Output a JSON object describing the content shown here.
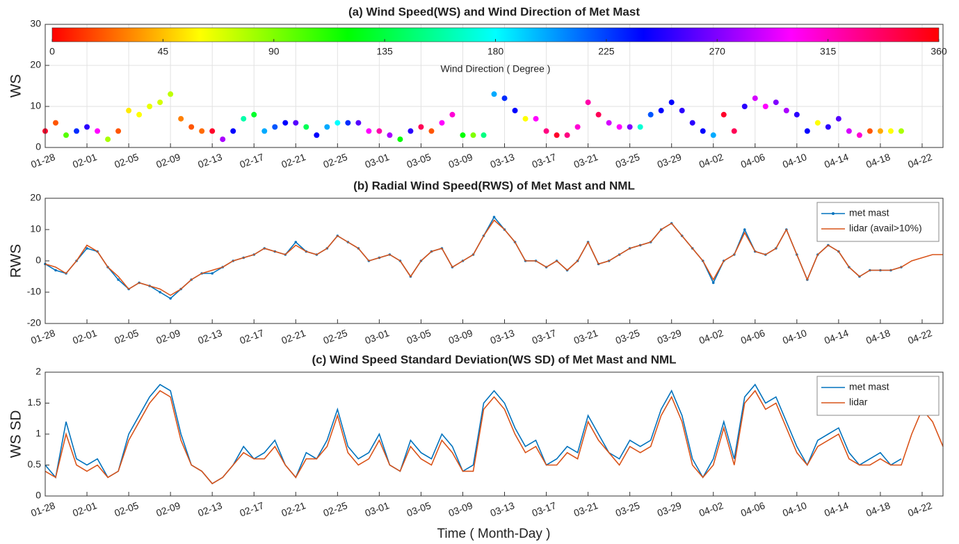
{
  "chart_data": [
    {
      "type": "scatter",
      "title": "(a) Wind Speed(WS) and Wind Direction of Met Mast",
      "ylabel": "WS",
      "x": [
        "01-28",
        "01-29",
        "01-30",
        "01-31",
        "02-01",
        "02-02",
        "02-03",
        "02-04",
        "02-05",
        "02-06",
        "02-07",
        "02-08",
        "02-09",
        "02-10",
        "02-11",
        "02-12",
        "02-13",
        "02-14",
        "02-15",
        "02-16",
        "02-17",
        "02-18",
        "02-19",
        "02-20",
        "02-21",
        "02-22",
        "02-23",
        "02-24",
        "02-25",
        "02-26",
        "02-27",
        "02-28",
        "03-01",
        "03-02",
        "03-03",
        "03-04",
        "03-05",
        "03-06",
        "03-07",
        "03-08",
        "03-09",
        "03-10",
        "03-11",
        "03-12",
        "03-13",
        "03-14",
        "03-15",
        "03-16",
        "03-17",
        "03-18",
        "03-19",
        "03-20",
        "03-21",
        "03-22",
        "03-23",
        "03-24",
        "03-25",
        "03-26",
        "03-27",
        "03-28",
        "03-29",
        "03-30",
        "03-31",
        "04-01",
        "04-02",
        "04-03",
        "04-04",
        "04-05",
        "04-06",
        "04-07",
        "04-08",
        "04-09",
        "04-10",
        "04-11",
        "04-12",
        "04-13",
        "04-14",
        "04-15",
        "04-16",
        "04-17",
        "04-18",
        "04-19",
        "04-20",
        "04-21",
        "04-22",
        "04-23",
        "04-24"
      ],
      "values": [
        4,
        6,
        3,
        4,
        5,
        4,
        2,
        4,
        9,
        8,
        10,
        11,
        13,
        7,
        5,
        4,
        4,
        2,
        4,
        7,
        8,
        4,
        5,
        6,
        6,
        5,
        3,
        5,
        6,
        6,
        6,
        4,
        4,
        3,
        2,
        4,
        5,
        4,
        6,
        8,
        3,
        3,
        3,
        13,
        12,
        9,
        7,
        7,
        4,
        3,
        3,
        5,
        11,
        8,
        6,
        5,
        5,
        5,
        8,
        9,
        11,
        9,
        6,
        4,
        3,
        8,
        4,
        10,
        12,
        10,
        11,
        9,
        8,
        4,
        6,
        5,
        7,
        4,
        3,
        4,
        4,
        4,
        4,
        null,
        null,
        null,
        null
      ],
      "color_values": [
        350,
        20,
        100,
        230,
        250,
        300,
        80,
        20,
        55,
        60,
        65,
        70,
        75,
        30,
        20,
        25,
        350,
        280,
        240,
        160,
        130,
        200,
        220,
        240,
        260,
        140,
        240,
        200,
        180,
        230,
        260,
        300,
        320,
        280,
        120,
        250,
        340,
        20,
        300,
        310,
        120,
        90,
        150,
        200,
        230,
        240,
        60,
        300,
        330,
        350,
        330,
        310,
        320,
        340,
        290,
        300,
        270,
        170,
        220,
        240,
        240,
        250,
        250,
        240,
        200,
        350,
        340,
        250,
        290,
        300,
        270,
        280,
        250,
        240,
        60,
        250,
        260,
        290,
        310,
        20,
        40,
        60,
        80,
        null,
        null,
        null,
        null
      ],
      "colormap": "hsv",
      "colorbar": {
        "label": "Wind Direction ( Degree )",
        "label_color": "#e8202a",
        "lim": [
          0,
          360
        ],
        "ticks": [
          0,
          45,
          90,
          135,
          180,
          225,
          270,
          315,
          360
        ]
      },
      "xlim": [
        "01-28",
        "04-24"
      ],
      "xticks": [
        "01-28",
        "02-01",
        "02-05",
        "02-09",
        "02-13",
        "02-17",
        "02-21",
        "02-25",
        "03-01",
        "03-05",
        "03-09",
        "03-13",
        "03-17",
        "03-21",
        "03-25",
        "03-29",
        "04-02",
        "04-06",
        "04-10",
        "04-14",
        "04-18",
        "04-22"
      ],
      "ylim": [
        0,
        30
      ],
      "yticks": [
        0,
        10,
        20,
        30
      ],
      "grid": true
    },
    {
      "type": "line",
      "title": "(b) Radial Wind Speed(RWS) of Met Mast and NML",
      "ylabel": "RWS",
      "x": [
        "01-28",
        "01-29",
        "01-30",
        "01-31",
        "02-01",
        "02-02",
        "02-03",
        "02-04",
        "02-05",
        "02-06",
        "02-07",
        "02-08",
        "02-09",
        "02-10",
        "02-11",
        "02-12",
        "02-13",
        "02-14",
        "02-15",
        "02-16",
        "02-17",
        "02-18",
        "02-19",
        "02-20",
        "02-21",
        "02-22",
        "02-23",
        "02-24",
        "02-25",
        "02-26",
        "02-27",
        "02-28",
        "03-01",
        "03-02",
        "03-03",
        "03-04",
        "03-05",
        "03-06",
        "03-07",
        "03-08",
        "03-09",
        "03-10",
        "03-11",
        "03-12",
        "03-13",
        "03-14",
        "03-15",
        "03-16",
        "03-17",
        "03-18",
        "03-19",
        "03-20",
        "03-21",
        "03-22",
        "03-23",
        "03-24",
        "03-25",
        "03-26",
        "03-27",
        "03-28",
        "03-29",
        "03-30",
        "03-31",
        "04-01",
        "04-02",
        "04-03",
        "04-04",
        "04-05",
        "04-06",
        "04-07",
        "04-08",
        "04-09",
        "04-10",
        "04-11",
        "04-12",
        "04-13",
        "04-14",
        "04-15",
        "04-16",
        "04-17",
        "04-18",
        "04-19",
        "04-20",
        "04-21",
        "04-22",
        "04-23",
        "04-24"
      ],
      "series": [
        {
          "name": "met mast",
          "color": "#0072bd",
          "marker": true,
          "values": [
            -1,
            -3,
            -4,
            0,
            4,
            3,
            -2,
            -6,
            -9,
            -7,
            -8,
            -10,
            -12,
            -9,
            -6,
            -4,
            -4,
            -2,
            0,
            1,
            2,
            4,
            3,
            2,
            6,
            3,
            2,
            4,
            8,
            6,
            4,
            0,
            1,
            2,
            0,
            -5,
            0,
            3,
            4,
            -2,
            0,
            2,
            8,
            14,
            10,
            6,
            0,
            0,
            -2,
            0,
            -3,
            0,
            6,
            -1,
            0,
            2,
            4,
            5,
            6,
            10,
            12,
            8,
            4,
            0,
            -7,
            0,
            2,
            10,
            3,
            2,
            4,
            10,
            2,
            -6,
            2,
            5,
            3,
            -2,
            -5,
            -3,
            -3,
            -3,
            -2,
            null,
            null,
            null,
            null
          ]
        },
        {
          "name": "lidar (avail>10%)",
          "color": "#d95319",
          "marker": false,
          "values": [
            -1,
            -2,
            -4,
            0,
            5,
            3,
            -2,
            -5,
            -9,
            -7,
            -8,
            -9,
            -11,
            -9,
            -6,
            -4,
            -3,
            -2,
            0,
            1,
            2,
            4,
            3,
            2,
            5,
            3,
            2,
            4,
            8,
            6,
            4,
            0,
            1,
            2,
            0,
            -5,
            0,
            3,
            4,
            -2,
            0,
            2,
            8,
            13,
            10,
            6,
            0,
            0,
            -2,
            0,
            -3,
            0,
            6,
            -1,
            0,
            2,
            4,
            5,
            6,
            10,
            12,
            8,
            4,
            0,
            -6,
            0,
            2,
            9,
            3,
            2,
            4,
            10,
            2,
            -6,
            2,
            5,
            3,
            -2,
            -5,
            -3,
            -3,
            -3,
            -2,
            0,
            1,
            2,
            2
          ]
        }
      ],
      "legend": "upper right",
      "xlim": [
        "01-28",
        "04-24"
      ],
      "xticks": [
        "01-28",
        "02-01",
        "02-05",
        "02-09",
        "02-13",
        "02-17",
        "02-21",
        "02-25",
        "03-01",
        "03-05",
        "03-09",
        "03-13",
        "03-17",
        "03-21",
        "03-25",
        "03-29",
        "04-02",
        "04-06",
        "04-10",
        "04-14",
        "04-18",
        "04-22"
      ],
      "ylim": [
        -20,
        20
      ],
      "yticks": [
        -20,
        -10,
        0,
        10,
        20
      ],
      "grid": false
    },
    {
      "type": "line",
      "title": "(c) Wind Speed Standard Deviation(WS SD) of Met Mast and NML",
      "ylabel": "WS SD",
      "xlabel": "Time ( Month-Day )",
      "x": [
        "01-28",
        "01-29",
        "01-30",
        "01-31",
        "02-01",
        "02-02",
        "02-03",
        "02-04",
        "02-05",
        "02-06",
        "02-07",
        "02-08",
        "02-09",
        "02-10",
        "02-11",
        "02-12",
        "02-13",
        "02-14",
        "02-15",
        "02-16",
        "02-17",
        "02-18",
        "02-19",
        "02-20",
        "02-21",
        "02-22",
        "02-23",
        "02-24",
        "02-25",
        "02-26",
        "02-27",
        "02-28",
        "03-01",
        "03-02",
        "03-03",
        "03-04",
        "03-05",
        "03-06",
        "03-07",
        "03-08",
        "03-09",
        "03-10",
        "03-11",
        "03-12",
        "03-13",
        "03-14",
        "03-15",
        "03-16",
        "03-17",
        "03-18",
        "03-19",
        "03-20",
        "03-21",
        "03-22",
        "03-23",
        "03-24",
        "03-25",
        "03-26",
        "03-27",
        "03-28",
        "03-29",
        "03-30",
        "03-31",
        "04-01",
        "04-02",
        "04-03",
        "04-04",
        "04-05",
        "04-06",
        "04-07",
        "04-08",
        "04-09",
        "04-10",
        "04-11",
        "04-12",
        "04-13",
        "04-14",
        "04-15",
        "04-16",
        "04-17",
        "04-18",
        "04-19",
        "04-20",
        "04-21",
        "04-22",
        "04-23",
        "04-24"
      ],
      "series": [
        {
          "name": "met mast",
          "color": "#0072bd",
          "marker": false,
          "values": [
            0.5,
            0.3,
            1.2,
            0.6,
            0.5,
            0.6,
            0.3,
            0.4,
            1.0,
            1.3,
            1.6,
            1.8,
            1.7,
            1.0,
            0.5,
            0.4,
            0.2,
            0.3,
            0.5,
            0.8,
            0.6,
            0.7,
            0.9,
            0.5,
            0.3,
            0.7,
            0.6,
            0.9,
            1.4,
            0.8,
            0.6,
            0.7,
            1.0,
            0.5,
            0.4,
            0.9,
            0.7,
            0.6,
            1.0,
            0.8,
            0.4,
            0.5,
            1.5,
            1.7,
            1.5,
            1.1,
            0.8,
            0.9,
            0.5,
            0.6,
            0.8,
            0.7,
            1.3,
            1.0,
            0.7,
            0.6,
            0.9,
            0.8,
            0.9,
            1.4,
            1.7,
            1.3,
            0.6,
            0.3,
            0.6,
            1.2,
            0.6,
            1.6,
            1.8,
            1.5,
            1.6,
            1.2,
            0.8,
            0.5,
            0.9,
            1.0,
            1.1,
            0.7,
            0.5,
            0.6,
            0.7,
            0.5,
            0.6,
            null,
            null,
            null,
            null
          ]
        },
        {
          "name": "lidar",
          "color": "#d95319",
          "marker": false,
          "values": [
            0.4,
            0.3,
            1.0,
            0.5,
            0.4,
            0.5,
            0.3,
            0.4,
            0.9,
            1.2,
            1.5,
            1.7,
            1.6,
            0.9,
            0.5,
            0.4,
            0.2,
            0.3,
            0.5,
            0.7,
            0.6,
            0.6,
            0.8,
            0.5,
            0.3,
            0.6,
            0.6,
            0.8,
            1.3,
            0.7,
            0.5,
            0.6,
            0.9,
            0.5,
            0.4,
            0.8,
            0.6,
            0.5,
            0.9,
            0.7,
            0.4,
            0.4,
            1.4,
            1.6,
            1.4,
            1.0,
            0.7,
            0.8,
            0.5,
            0.5,
            0.7,
            0.6,
            1.2,
            0.9,
            0.7,
            0.5,
            0.8,
            0.7,
            0.8,
            1.3,
            1.6,
            1.2,
            0.5,
            0.3,
            0.5,
            1.1,
            0.5,
            1.5,
            1.7,
            1.4,
            1.5,
            1.1,
            0.7,
            0.5,
            0.8,
            0.9,
            1.0,
            0.6,
            0.5,
            0.5,
            0.6,
            0.5,
            0.5,
            1.0,
            1.4,
            1.2,
            0.8
          ]
        }
      ],
      "legend": "upper right",
      "xlim": [
        "01-28",
        "04-24"
      ],
      "xticks": [
        "01-28",
        "02-01",
        "02-05",
        "02-09",
        "02-13",
        "02-17",
        "02-21",
        "02-25",
        "03-01",
        "03-05",
        "03-09",
        "03-13",
        "03-17",
        "03-21",
        "03-25",
        "03-29",
        "04-02",
        "04-06",
        "04-10",
        "04-14",
        "04-18",
        "04-22"
      ],
      "ylim": [
        0,
        2
      ],
      "yticks": [
        0,
        0.5,
        1,
        1.5,
        2
      ],
      "grid": false
    }
  ]
}
